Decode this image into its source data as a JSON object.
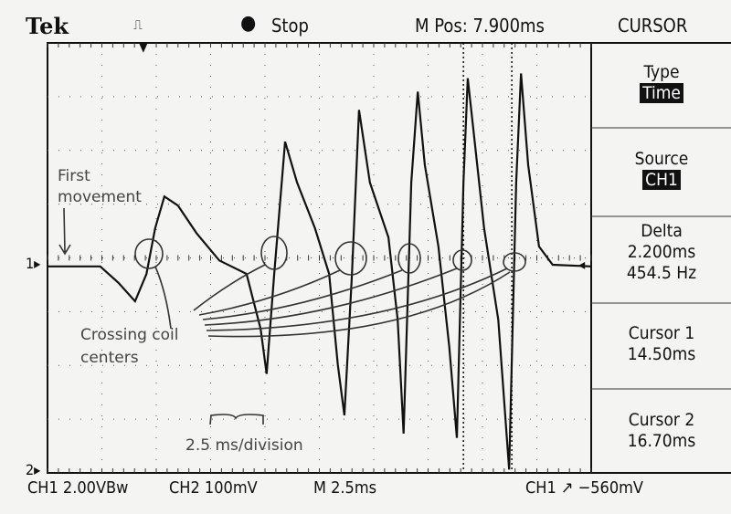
{
  "header": {
    "brand": "Tek",
    "trigger_status": "Stop",
    "m_pos": "M Pos: 7.900ms",
    "menu": "CURSOR"
  },
  "footer": {
    "ch1": "CH1 2.00VBw",
    "ch2": "CH2 100mV",
    "timebase": "M 2.5ms",
    "trigger": "CH1 ↗ −560mV"
  },
  "markers": {
    "ch1_ground": "1",
    "ch2_ground": "2"
  },
  "panel": {
    "type": {
      "label": "Type",
      "value": "Time"
    },
    "source": {
      "label": "Source",
      "value": "CH1"
    },
    "delta": {
      "label": "Delta",
      "value": "2.200ms",
      "freq": "454.5 Hz"
    },
    "cursor1": {
      "label": "Cursor 1",
      "value": "14.50ms"
    },
    "cursor2": {
      "label": "Cursor 2",
      "value": "16.70ms"
    }
  },
  "annotations": {
    "first": "First",
    "movement": "movement",
    "crossing": "Crossing coil",
    "centers": "centers",
    "scale": "2.5 ms/division"
  },
  "trace_divisions": [
    [
      0,
      -0.03
    ],
    [
      0.97,
      -0.03
    ],
    [
      1.31,
      -0.34
    ],
    [
      1.61,
      -0.68
    ],
    [
      1.82,
      -0.17
    ],
    [
      1.98,
      0.68
    ],
    [
      2.15,
      1.27
    ],
    [
      2.4,
      1.1
    ],
    [
      2.74,
      0.59
    ],
    [
      3.16,
      0.08
    ],
    [
      3.66,
      -0.17
    ],
    [
      3.92,
      -1.19
    ],
    [
      4.03,
      -2.03
    ],
    [
      4.17,
      -0.17
    ],
    [
      4.37,
      2.29
    ],
    [
      4.59,
      1.53
    ],
    [
      4.92,
      0.68
    ],
    [
      5.18,
      -0.17
    ],
    [
      5.34,
      -1.86
    ],
    [
      5.46,
      -2.8
    ],
    [
      5.6,
      -0.17
    ],
    [
      5.73,
      2.88
    ],
    [
      5.93,
      1.53
    ],
    [
      6.27,
      0.51
    ],
    [
      6.44,
      -1.02
    ],
    [
      6.55,
      -3.14
    ],
    [
      6.69,
      1.53
    ],
    [
      6.81,
      3.22
    ],
    [
      6.94,
      1.86
    ],
    [
      7.19,
      0.34
    ],
    [
      7.39,
      -1.53
    ],
    [
      7.53,
      -3.22
    ],
    [
      7.65,
      1.53
    ],
    [
      7.73,
      3.47
    ],
    [
      7.83,
      2.54
    ],
    [
      8.03,
      0.68
    ],
    [
      8.29,
      -1.02
    ],
    [
      8.49,
      -3.81
    ],
    [
      8.62,
      1.53
    ],
    [
      8.71,
      3.56
    ],
    [
      8.84,
      1.86
    ],
    [
      9.04,
      0.34
    ],
    [
      9.29,
      0
    ],
    [
      10,
      -0.03
    ]
  ],
  "cursor_divisions": [
    7.65,
    8.54
  ]
}
